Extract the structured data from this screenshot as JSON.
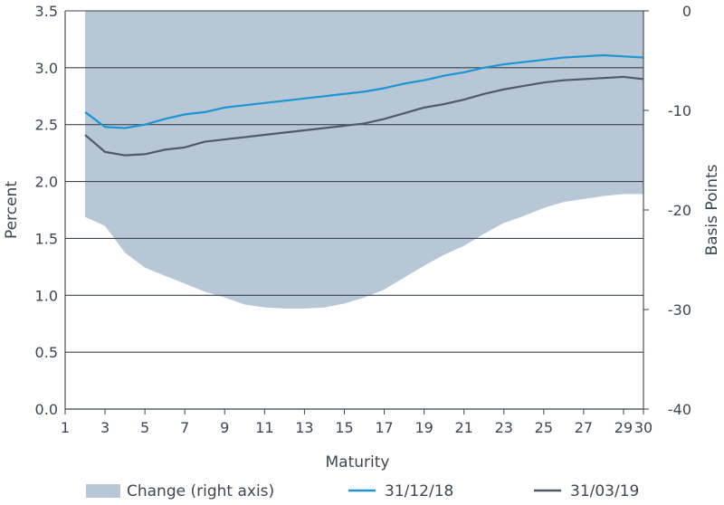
{
  "chart_data": {
    "type": "line",
    "xlabel": "Maturity",
    "ylabel": "Percent",
    "y2label": "Basis Points",
    "xlim": [
      1,
      30
    ],
    "ylim": [
      0,
      3.5
    ],
    "y2lim": [
      -40,
      0
    ],
    "x_ticks": [
      "1",
      "3",
      "5",
      "7",
      "9",
      "11",
      "13",
      "15",
      "17",
      "19",
      "21",
      "23",
      "25",
      "27",
      "29",
      "30"
    ],
    "y_ticks": [
      "0.0",
      "0.5",
      "1.0",
      "1.5",
      "2.0",
      "2.5",
      "3.0",
      "3.5"
    ],
    "y2_ticks": [
      "0",
      "-10",
      "-20",
      "-30",
      "-40"
    ],
    "grid": "horizontal",
    "legend_position": "bottom",
    "x": [
      2,
      3,
      4,
      5,
      6,
      7,
      8,
      9,
      10,
      11,
      12,
      13,
      14,
      15,
      16,
      17,
      18,
      19,
      20,
      21,
      22,
      23,
      24,
      25,
      26,
      27,
      28,
      29,
      30
    ],
    "series": [
      {
        "name": "Change (right axis)",
        "type": "area",
        "axis": "right",
        "color": "#b7c7d5",
        "values": [
          -20.7,
          -21.6,
          -24.3,
          -25.8,
          -26.6,
          -27.4,
          -28.2,
          -28.8,
          -29.5,
          -29.8,
          -29.9,
          -29.9,
          -29.8,
          -29.4,
          -28.8,
          -28.0,
          -26.8,
          -25.6,
          -24.5,
          -23.6,
          -22.4,
          -21.3,
          -20.6,
          -19.8,
          -19.2,
          -18.9,
          -18.6,
          -18.4,
          -18.4
        ]
      },
      {
        "name": "31/12/18",
        "type": "line",
        "axis": "left",
        "color": "#1b95d4",
        "values": [
          2.61,
          2.48,
          2.47,
          2.5,
          2.55,
          2.59,
          2.61,
          2.65,
          2.67,
          2.69,
          2.71,
          2.73,
          2.75,
          2.77,
          2.79,
          2.82,
          2.86,
          2.89,
          2.93,
          2.96,
          3.0,
          3.03,
          3.05,
          3.07,
          3.09,
          3.1,
          3.11,
          3.1,
          3.09
        ]
      },
      {
        "name": "31/03/19",
        "type": "line",
        "axis": "left",
        "color": "#4f5b66",
        "values": [
          2.41,
          2.26,
          2.23,
          2.24,
          2.28,
          2.3,
          2.35,
          2.37,
          2.39,
          2.41,
          2.43,
          2.45,
          2.47,
          2.49,
          2.51,
          2.55,
          2.6,
          2.65,
          2.68,
          2.72,
          2.77,
          2.81,
          2.84,
          2.87,
          2.89,
          2.9,
          2.91,
          2.92,
          2.9
        ]
      }
    ]
  }
}
